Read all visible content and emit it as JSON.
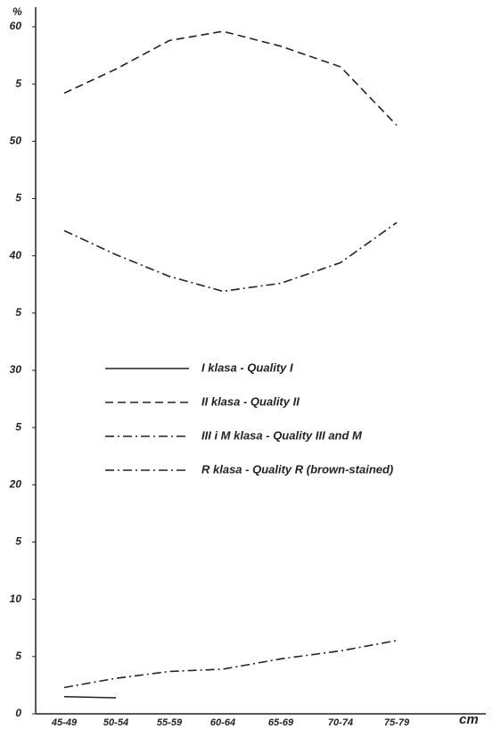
{
  "chart_data": {
    "type": "line",
    "ylabel": "%",
    "xlabel": "cm",
    "categories": [
      "45-49",
      "50-54",
      "55-59",
      "60-64",
      "65-69",
      "70-74",
      "75-79"
    ],
    "series": [
      {
        "name": "I klasa - Quality I",
        "color": "#222222",
        "style": "solid",
        "values": [
          1.5,
          1.4,
          null,
          null,
          null,
          null,
          null
        ]
      },
      {
        "name": "II klasa - Quality II",
        "color": "#222222",
        "style": "dashed",
        "values": [
          54.2,
          56.3,
          58.8,
          59.6,
          58.3,
          56.5,
          51.4
        ]
      },
      {
        "name": "III i M klasa - Quality III and M",
        "color": "#222222",
        "style": "dashdot",
        "values": [
          42.2,
          40.1,
          38.2,
          36.9,
          37.6,
          39.4,
          42.9
        ]
      },
      {
        "name": "R klasa - Quality R (brown-stained)",
        "color": "#222222",
        "style": "dashdot",
        "values": [
          2.3,
          3.1,
          3.7,
          3.9,
          4.8,
          5.5,
          6.4
        ]
      }
    ],
    "ylim": [
      0,
      60
    ],
    "yticks": [
      0,
      {
        "value": 5,
        "label": "5"
      },
      10,
      {
        "value": 15,
        "label": "5"
      },
      20,
      {
        "value": 25,
        "label": "5"
      },
      30,
      {
        "value": 35,
        "label": "5"
      },
      40,
      {
        "value": 45,
        "label": "5"
      },
      50,
      {
        "value": 55,
        "label": "5"
      },
      60
    ],
    "grid": false,
    "legend": "center"
  }
}
